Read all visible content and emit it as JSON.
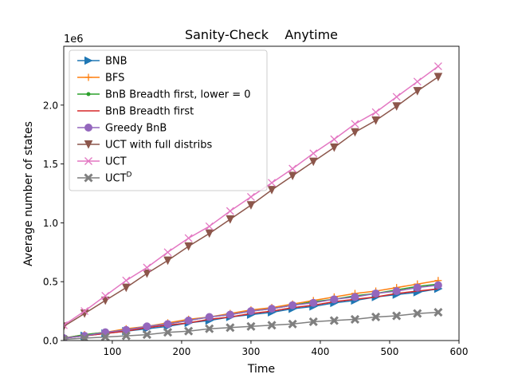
{
  "chart_data": {
    "type": "line",
    "title": "Sanity-Check    Anytime",
    "xlabel": "Time",
    "ylabel": "Average number of states",
    "offset_text": "1e6",
    "xlim": [
      30,
      600
    ],
    "ylim": [
      0,
      2.5
    ],
    "y_scale_note": "values in units of 1e6",
    "xticks": [
      100,
      200,
      300,
      400,
      500,
      600
    ],
    "yticks": [
      0.0,
      0.5,
      1.0,
      1.5,
      2.0
    ],
    "xtick_labels": [
      "100",
      "200",
      "300",
      "400",
      "500",
      "600"
    ],
    "ytick_labels": [
      "0.0",
      "0.5",
      "1.0",
      "1.5",
      "2.0"
    ],
    "grid": false,
    "legend_position": "top-left",
    "x": [
      30,
      60,
      90,
      120,
      150,
      180,
      210,
      240,
      270,
      300,
      330,
      360,
      390,
      420,
      450,
      480,
      510,
      540,
      570
    ],
    "series": [
      {
        "name": "BNB",
        "color": "#1f77b4",
        "marker": "triangle-right",
        "values": [
          0.02,
          0.04,
          0.06,
          0.08,
          0.1,
          0.12,
          0.15,
          0.17,
          0.2,
          0.22,
          0.24,
          0.27,
          0.29,
          0.32,
          0.34,
          0.37,
          0.39,
          0.41,
          0.44
        ]
      },
      {
        "name": "BFS",
        "color": "#ff7f0e",
        "marker": "plus",
        "values": [
          0.02,
          0.05,
          0.07,
          0.1,
          0.12,
          0.15,
          0.18,
          0.2,
          0.23,
          0.26,
          0.28,
          0.31,
          0.34,
          0.37,
          0.4,
          0.42,
          0.45,
          0.48,
          0.51
        ]
      },
      {
        "name": "BnB Breadth first, lower = 0",
        "color": "#2ca02c",
        "marker": "dot",
        "values": [
          0.02,
          0.05,
          0.07,
          0.09,
          0.12,
          0.14,
          0.17,
          0.2,
          0.22,
          0.25,
          0.27,
          0.3,
          0.33,
          0.35,
          0.38,
          0.4,
          0.43,
          0.46,
          0.48
        ]
      },
      {
        "name": "BnB Breadth first",
        "color": "#d62728",
        "marker": "none",
        "values": [
          0.02,
          0.04,
          0.06,
          0.08,
          0.11,
          0.13,
          0.15,
          0.18,
          0.2,
          0.23,
          0.25,
          0.28,
          0.3,
          0.33,
          0.35,
          0.37,
          0.4,
          0.42,
          0.44
        ]
      },
      {
        "name": "Greedy BnB",
        "color": "#9467bd",
        "marker": "circle",
        "values": [
          0.02,
          0.04,
          0.07,
          0.09,
          0.12,
          0.14,
          0.17,
          0.2,
          0.22,
          0.25,
          0.27,
          0.3,
          0.32,
          0.35,
          0.37,
          0.4,
          0.42,
          0.45,
          0.47
        ]
      },
      {
        "name": "UCT with full distribs",
        "color": "#8c564b",
        "marker": "triangle-down",
        "values": [
          0.12,
          0.23,
          0.34,
          0.45,
          0.57,
          0.68,
          0.8,
          0.91,
          1.03,
          1.15,
          1.28,
          1.4,
          1.52,
          1.64,
          1.77,
          1.87,
          1.99,
          2.12,
          2.24
        ]
      },
      {
        "name": "UCT",
        "color": "#e377c2",
        "marker": "x",
        "values": [
          0.13,
          0.25,
          0.38,
          0.51,
          0.62,
          0.75,
          0.87,
          0.97,
          1.1,
          1.22,
          1.34,
          1.46,
          1.59,
          1.71,
          1.84,
          1.94,
          2.07,
          2.2,
          2.33
        ]
      },
      {
        "name": "UCT",
        "name_superscript": "D",
        "color": "#7f7f7f",
        "marker": "x-filled",
        "values": [
          0.01,
          0.02,
          0.03,
          0.04,
          0.05,
          0.07,
          0.08,
          0.1,
          0.11,
          0.12,
          0.13,
          0.14,
          0.16,
          0.17,
          0.18,
          0.2,
          0.21,
          0.23,
          0.24
        ]
      }
    ]
  }
}
